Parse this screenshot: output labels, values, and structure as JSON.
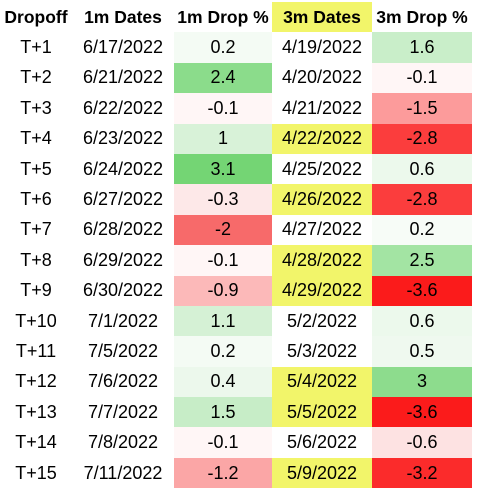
{
  "headers": [
    "Dropoff",
    "1m Dates",
    "1m Drop %",
    "3m Dates",
    "3m Drop %"
  ],
  "header_highlight": {
    "3m Dates": "#f2f56a"
  },
  "rows": [
    {
      "dropoff": "T+1",
      "d1": "6/17/2022",
      "p1": "0.2",
      "p1_bg": "#f4fbf4",
      "d3": "4/19/2022",
      "d3_bg": "#ffffff",
      "p3": "1.6",
      "p3_bg": "#c9eec9"
    },
    {
      "dropoff": "T+2",
      "d1": "6/21/2022",
      "p1": "2.4",
      "p1_bg": "#8bdc8b",
      "d3": "4/20/2022",
      "d3_bg": "#ffffff",
      "p3": "-0.1",
      "p3_bg": "#fff6f6"
    },
    {
      "dropoff": "T+3",
      "d1": "6/22/2022",
      "p1": "-0.1",
      "p1_bg": "#fff6f6",
      "d3": "4/21/2022",
      "d3_bg": "#ffffff",
      "p3": "-1.5",
      "p3_bg": "#fc9b9b"
    },
    {
      "dropoff": "T+4",
      "d1": "6/23/2022",
      "p1": "1",
      "p1_bg": "#d8f2d8",
      "d3": "4/22/2022",
      "d3_bg": "#f2f56a",
      "p3": "-2.8",
      "p3_bg": "#fb3d3d"
    },
    {
      "dropoff": "T+5",
      "d1": "6/24/2022",
      "p1": "3.1",
      "p1_bg": "#74d574",
      "d3": "4/25/2022",
      "d3_bg": "#ffffff",
      "p3": "0.6",
      "p3_bg": "#ecf9ec"
    },
    {
      "dropoff": "T+6",
      "d1": "6/27/2022",
      "p1": "-0.3",
      "p1_bg": "#fde8e8",
      "d3": "4/26/2022",
      "d3_bg": "#f2f56a",
      "p3": "-2.8",
      "p3_bg": "#fb3d3d"
    },
    {
      "dropoff": "T+7",
      "d1": "6/28/2022",
      "p1": "-2",
      "p1_bg": "#f76a6a",
      "d3": "4/27/2022",
      "d3_bg": "#ffffff",
      "p3": "0.2",
      "p3_bg": "#f7fcf7"
    },
    {
      "dropoff": "T+8",
      "d1": "6/29/2022",
      "p1": "-0.1",
      "p1_bg": "#fff6f6",
      "d3": "4/28/2022",
      "d3_bg": "#f2f56a",
      "p3": "2.5",
      "p3_bg": "#a3e4a3"
    },
    {
      "dropoff": "T+9",
      "d1": "6/30/2022",
      "p1": "-0.9",
      "p1_bg": "#fcb9b9",
      "d3": "4/29/2022",
      "d3_bg": "#f2f56a",
      "p3": "-3.6",
      "p3_bg": "#fb1b1b"
    },
    {
      "dropoff": "T+10",
      "d1": "7/1/2022",
      "p1": "1.1",
      "p1_bg": "#d5f1d5",
      "d3": "5/2/2022",
      "d3_bg": "#ffffff",
      "p3": "0.6",
      "p3_bg": "#ecf9ec"
    },
    {
      "dropoff": "T+11",
      "d1": "7/5/2022",
      "p1": "0.2",
      "p1_bg": "#f4fbf4",
      "d3": "5/3/2022",
      "d3_bg": "#ffffff",
      "p3": "0.5",
      "p3_bg": "#eff9ef"
    },
    {
      "dropoff": "T+12",
      "d1": "7/6/2022",
      "p1": "0.4",
      "p1_bg": "#ecf8ec",
      "d3": "5/4/2022",
      "d3_bg": "#f2f56a",
      "p3": "3",
      "p3_bg": "#8ddc8d"
    },
    {
      "dropoff": "T+13",
      "d1": "7/7/2022",
      "p1": "1.5",
      "p1_bg": "#c7edc7",
      "d3": "5/5/2022",
      "d3_bg": "#f2f56a",
      "p3": "-3.6",
      "p3_bg": "#fb1b1b"
    },
    {
      "dropoff": "T+14",
      "d1": "7/8/2022",
      "p1": "-0.1",
      "p1_bg": "#fff6f6",
      "d3": "5/6/2022",
      "d3_bg": "#ffffff",
      "p3": "-0.6",
      "p3_bg": "#fde2e2"
    },
    {
      "dropoff": "T+15",
      "d1": "7/11/2022",
      "p1": "-1.2",
      "p1_bg": "#fba6a6",
      "d3": "5/9/2022",
      "d3_bg": "#f2f56a",
      "p3": "-3.2",
      "p3_bg": "#fb2b2b"
    }
  ]
}
